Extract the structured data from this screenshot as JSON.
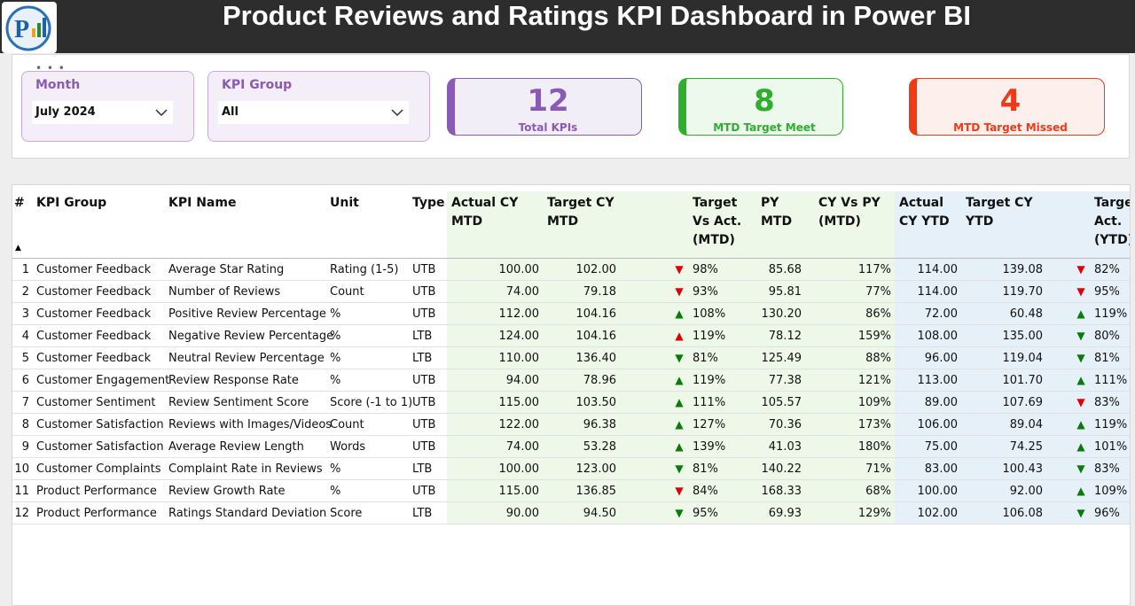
{
  "header": {
    "title": "Product Reviews and Ratings KPI Dashboard in Power BI"
  },
  "slicers": [
    {
      "label": "Month",
      "value": "July 2024"
    },
    {
      "label": "KPI Group",
      "value": "All"
    }
  ],
  "cards": [
    {
      "value": "12",
      "label": "Total KPIs",
      "color": "#8a5bb5"
    },
    {
      "value": "8",
      "label": "MTD Target Meet",
      "color": "#2eae2e"
    },
    {
      "value": "4",
      "label": "MTD Target Missed",
      "color": "#f03a17"
    }
  ],
  "table": {
    "headers": [
      "#",
      "KPI Group",
      "KPI Name",
      "Unit",
      "Type",
      "Actual CY MTD",
      "Target CY MTD",
      "Target Vs Act. (MTD)",
      "PY MTD",
      "CY Vs PY (MTD)",
      "Actual CY YTD",
      "Target CY YTD",
      "Target Vs Act. (YTD)"
    ],
    "rows": [
      {
        "cells": [
          "1",
          "Customer Feedback",
          "Average Star Rating",
          "Rating (1-5)",
          "UTB",
          "100.00",
          "102.00",
          "98%",
          "85.68",
          "117%",
          "114.00",
          "139.08",
          "82%"
        ],
        "mtd_arrow": "▼",
        "mtd_color": "#e00000",
        "ytd_arrow": "▼",
        "ytd_color": "#e00000"
      },
      {
        "cells": [
          "2",
          "Customer Feedback",
          "Number of Reviews",
          "Count",
          "UTB",
          "74.00",
          "79.18",
          "93%",
          "95.81",
          "77%",
          "114.00",
          "119.70",
          "95%"
        ],
        "mtd_arrow": "▼",
        "mtd_color": "#e00000",
        "ytd_arrow": "▼",
        "ytd_color": "#e00000"
      },
      {
        "cells": [
          "3",
          "Customer Feedback",
          "Positive Review Percentage",
          "%",
          "UTB",
          "112.00",
          "104.16",
          "108%",
          "130.20",
          "86%",
          "72.00",
          "60.48",
          "119%"
        ],
        "mtd_arrow": "▲",
        "mtd_color": "#0a7a0a",
        "ytd_arrow": "▲",
        "ytd_color": "#0a7a0a"
      },
      {
        "cells": [
          "4",
          "Customer Feedback",
          "Negative Review Percentage",
          "%",
          "LTB",
          "124.00",
          "104.16",
          "119%",
          "78.12",
          "159%",
          "108.00",
          "135.00",
          "80%"
        ],
        "mtd_arrow": "▲",
        "mtd_color": "#e00000",
        "ytd_arrow": "▼",
        "ytd_color": "#0a7a0a"
      },
      {
        "cells": [
          "5",
          "Customer Feedback",
          "Neutral Review Percentage",
          "%",
          "LTB",
          "110.00",
          "136.40",
          "81%",
          "125.49",
          "88%",
          "96.00",
          "119.04",
          "81%"
        ],
        "mtd_arrow": "▼",
        "mtd_color": "#0a7a0a",
        "ytd_arrow": "▼",
        "ytd_color": "#0a7a0a"
      },
      {
        "cells": [
          "6",
          "Customer Engagement",
          "Review Response Rate",
          "%",
          "UTB",
          "94.00",
          "78.96",
          "119%",
          "77.38",
          "121%",
          "113.00",
          "101.70",
          "111%"
        ],
        "mtd_arrow": "▲",
        "mtd_color": "#0a7a0a",
        "ytd_arrow": "▲",
        "ytd_color": "#0a7a0a"
      },
      {
        "cells": [
          "7",
          "Customer Sentiment",
          "Review Sentiment Score",
          "Score (-1 to 1)",
          "UTB",
          "115.00",
          "103.50",
          "111%",
          "105.57",
          "109%",
          "89.00",
          "107.69",
          "83%"
        ],
        "mtd_arrow": "▲",
        "mtd_color": "#0a7a0a",
        "ytd_arrow": "▼",
        "ytd_color": "#e00000"
      },
      {
        "cells": [
          "8",
          "Customer Satisfaction",
          "Reviews with Images/Videos",
          "Count",
          "UTB",
          "122.00",
          "96.38",
          "127%",
          "70.36",
          "173%",
          "106.00",
          "89.04",
          "119%"
        ],
        "mtd_arrow": "▲",
        "mtd_color": "#0a7a0a",
        "ytd_arrow": "▲",
        "ytd_color": "#0a7a0a"
      },
      {
        "cells": [
          "9",
          "Customer Satisfaction",
          "Average Review Length",
          "Words",
          "UTB",
          "74.00",
          "53.28",
          "139%",
          "41.03",
          "180%",
          "75.00",
          "74.25",
          "101%"
        ],
        "mtd_arrow": "▲",
        "mtd_color": "#0a7a0a",
        "ytd_arrow": "▲",
        "ytd_color": "#0a7a0a"
      },
      {
        "cells": [
          "10",
          "Customer Complaints",
          "Complaint Rate in Reviews",
          "%",
          "LTB",
          "100.00",
          "123.00",
          "81%",
          "140.22",
          "71%",
          "83.00",
          "100.43",
          "83%"
        ],
        "mtd_arrow": "▼",
        "mtd_color": "#0a7a0a",
        "ytd_arrow": "▼",
        "ytd_color": "#0a7a0a"
      },
      {
        "cells": [
          "11",
          "Product Performance",
          "Review Growth Rate",
          "%",
          "UTB",
          "115.00",
          "136.85",
          "84%",
          "168.33",
          "68%",
          "100.00",
          "92.00",
          "109%"
        ],
        "mtd_arrow": "▼",
        "mtd_color": "#e00000",
        "ytd_arrow": "▲",
        "ytd_color": "#0a7a0a"
      },
      {
        "cells": [
          "12",
          "Product Performance",
          "Ratings Standard Deviation",
          "Score",
          "LTB",
          "90.00",
          "94.50",
          "95%",
          "69.93",
          "129%",
          "102.00",
          "106.08",
          "96%"
        ],
        "mtd_arrow": "▼",
        "mtd_color": "#0a7a0a",
        "ytd_arrow": "▼",
        "ytd_color": "#0a7a0a"
      }
    ]
  }
}
